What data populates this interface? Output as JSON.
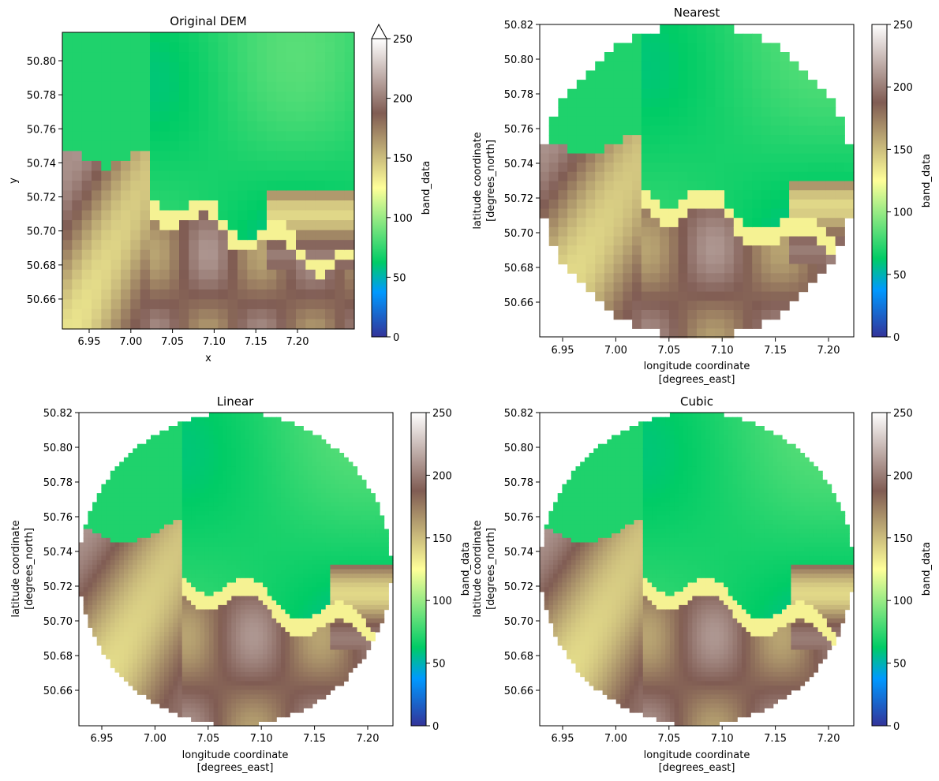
{
  "chart_data": [
    {
      "type": "heatmap",
      "title": "Original DEM",
      "xlabel": "x",
      "ylabel": "y",
      "xticks": [
        "6.95",
        "7.00",
        "7.05",
        "7.10",
        "7.15",
        "7.20"
      ],
      "yticks": [
        "50.66",
        "50.68",
        "50.70",
        "50.72",
        "50.74",
        "50.76",
        "50.78",
        "50.80"
      ],
      "colorbar": {
        "label": "band_data",
        "ticks": [
          "0",
          "50",
          "100",
          "150",
          "200",
          "250"
        ],
        "extend": "max"
      }
    },
    {
      "type": "heatmap",
      "title": "Nearest",
      "xlabel": "longitude coordinate",
      "xlabel2": "[degrees_east]",
      "ylabel": "latitude coordinate",
      "ylabel2": "[degrees_north]",
      "xticks": [
        "6.95",
        "7.00",
        "7.05",
        "7.10",
        "7.15",
        "7.20"
      ],
      "yticks": [
        "50.66",
        "50.68",
        "50.70",
        "50.72",
        "50.74",
        "50.76",
        "50.78",
        "50.80",
        "50.82"
      ],
      "colorbar": {
        "label": "band_data",
        "ticks": [
          "0",
          "50",
          "100",
          "150",
          "200",
          "250"
        ]
      }
    },
    {
      "type": "heatmap",
      "title": "Linear",
      "xlabel": "longitude coordinate",
      "xlabel2": "[degrees_east]",
      "ylabel": "latitude coordinate",
      "ylabel2": "[degrees_north]",
      "xticks": [
        "6.95",
        "7.00",
        "7.05",
        "7.10",
        "7.15",
        "7.20"
      ],
      "yticks": [
        "50.66",
        "50.68",
        "50.70",
        "50.72",
        "50.74",
        "50.76",
        "50.78",
        "50.80",
        "50.82"
      ],
      "colorbar": {
        "label": "band_data",
        "ticks": [
          "0",
          "50",
          "100",
          "150",
          "200",
          "250"
        ]
      }
    },
    {
      "type": "heatmap",
      "title": "Cubic",
      "xlabel": "longitude coordinate",
      "xlabel2": "[degrees_east]",
      "ylabel": "latitude coordinate",
      "ylabel2": "[degrees_north]",
      "xticks": [
        "6.95",
        "7.00",
        "7.05",
        "7.10",
        "7.15",
        "7.20"
      ],
      "yticks": [
        "50.66",
        "50.68",
        "50.70",
        "50.72",
        "50.74",
        "50.76",
        "50.78",
        "50.80",
        "50.82"
      ],
      "colorbar": {
        "label": "band_data",
        "ticks": [
          "0",
          "50",
          "100",
          "150",
          "200",
          "250"
        ]
      }
    }
  ],
  "colors": {
    "terrain_stops": [
      "#333399",
      "#0099ff",
      "#00cc66",
      "#ffff99",
      "#805c53",
      "#ffffff"
    ]
  }
}
